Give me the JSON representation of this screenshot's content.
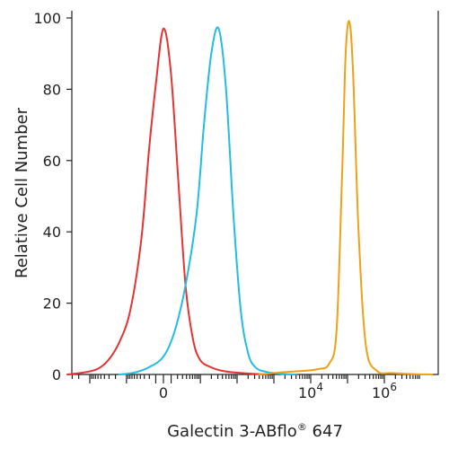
{
  "chart_data": {
    "type": "line",
    "xlabel": "Galectin 3-ABflo",
    "xlabel_sup": "®",
    "xlabel_suffix": " 647",
    "ylabel": "Relative Cell Number",
    "ylim": [
      0,
      100
    ],
    "yticks": [
      0,
      20,
      40,
      60,
      80,
      100
    ],
    "grid": false,
    "legend": "none",
    "x_scale": "biexponential",
    "x_tick_labels": [
      {
        "value": "0",
        "base": "0",
        "exp": ""
      },
      {
        "value": "10000",
        "base": "10",
        "exp": "4"
      },
      {
        "value": "1000000",
        "base": "10",
        "exp": "6"
      }
    ],
    "series": [
      {
        "color": "#e53333",
        "x": [
          -2.6,
          -2.2,
          -1.8,
          -1.5,
          -1.2,
          -0.9,
          -0.6,
          -0.4,
          -0.2,
          0.0,
          0.2,
          0.4,
          0.6,
          0.8,
          1.0,
          1.3,
          1.6,
          2.0,
          2.4,
          2.8
        ],
        "values": [
          0,
          0.5,
          1.5,
          4,
          9,
          18,
          38,
          62,
          82,
          97,
          85,
          55,
          25,
          10,
          4,
          2,
          1,
          0.5,
          0.2,
          0
        ]
      },
      {
        "color": "#22bde0",
        "x": [
          -1.2,
          -0.8,
          -0.4,
          0.0,
          0.3,
          0.6,
          0.9,
          1.1,
          1.3,
          1.5,
          1.7,
          1.9,
          2.1,
          2.3,
          2.5,
          2.8,
          3.2,
          3.6
        ],
        "values": [
          0,
          0.5,
          2,
          5,
          12,
          25,
          45,
          70,
          90,
          97,
          80,
          45,
          18,
          6,
          2,
          0.7,
          0.2,
          0
        ]
      },
      {
        "color": "#f0a018",
        "x": [
          2.6,
          3.2,
          3.8,
          4.2,
          4.5,
          4.7,
          4.85,
          4.95,
          5.05,
          5.15,
          5.3,
          5.5,
          5.8,
          6.2,
          6.8,
          7.3
        ],
        "values": [
          0,
          0.6,
          1,
          1.5,
          3,
          12,
          55,
          90,
          99,
          85,
          40,
          8,
          1,
          0.4,
          0.1,
          0
        ]
      }
    ]
  }
}
